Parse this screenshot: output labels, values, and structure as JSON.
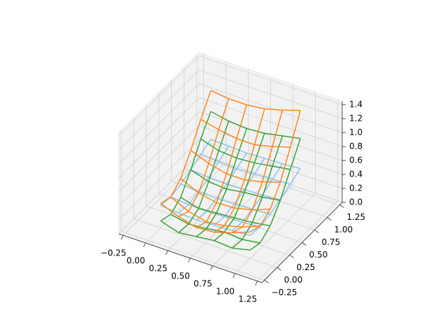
{
  "chart_data": {
    "type": "wireframe3d",
    "x": [
      0,
      0.2,
      0.4,
      0.6,
      0.8,
      1.0
    ],
    "y": [
      0,
      0.2,
      0.4,
      0.6,
      0.8,
      1.0
    ],
    "xlim": [
      -0.3,
      1.3
    ],
    "ylim": [
      -0.3,
      1.3
    ],
    "zlim": [
      0,
      1.45
    ],
    "xticks": [
      {
        "value": -0.25,
        "label": "−0.25"
      },
      {
        "value": 0,
        "label": "0.00"
      },
      0.25,
      {
        "value": 0.5,
        "label": "0.50"
      },
      0.75,
      {
        "value": 1.0,
        "label": "1.00"
      },
      1.25
    ],
    "yticks": [
      {
        "value": -0.25,
        "label": "−0.25"
      },
      {
        "value": 0,
        "label": "0.00"
      },
      0.25,
      {
        "value": 0.5,
        "label": "0.50"
      },
      0.75,
      {
        "value": 1.0,
        "label": "1.00"
      },
      1.25
    ],
    "zticks": [
      {
        "value": 0,
        "label": "0.0"
      },
      0.2,
      0.4,
      0.6,
      0.8,
      {
        "value": 1.0,
        "label": "1.0"
      },
      1.2,
      1.4
    ],
    "grid": true,
    "series": [
      {
        "color": "#8fc1e8",
        "z": [
          [
            0.32,
            0.3,
            0.34,
            0.4,
            0.48,
            0.55
          ],
          [
            0.3,
            0.28,
            0.32,
            0.38,
            0.46,
            0.54
          ],
          [
            0.29,
            0.27,
            0.31,
            0.37,
            0.45,
            0.53
          ],
          [
            0.3,
            0.28,
            0.32,
            0.38,
            0.46,
            0.54
          ],
          [
            0.31,
            0.29,
            0.33,
            0.39,
            0.47,
            0.55
          ],
          [
            0.33,
            0.31,
            0.35,
            0.41,
            0.49,
            0.57
          ]
        ]
      },
      {
        "color": "#2ca02c",
        "z": [
          [
            0.1,
            0.05,
            0.15,
            0.4,
            0.7,
            0.95
          ],
          [
            0.02,
            0.0,
            0.08,
            0.32,
            0.62,
            0.9
          ],
          [
            0.05,
            0.02,
            0.1,
            0.3,
            0.6,
            0.88
          ],
          [
            0.08,
            0.06,
            0.12,
            0.34,
            0.62,
            0.9
          ],
          [
            0.06,
            0.04,
            0.14,
            0.36,
            0.66,
            0.95
          ],
          [
            0.12,
            0.08,
            0.18,
            0.4,
            0.7,
            1.0
          ]
        ]
      },
      {
        "color": "#ff7f0e",
        "z": [
          [
            0.35,
            0.3,
            0.42,
            0.68,
            0.98,
            1.25
          ],
          [
            0.25,
            0.18,
            0.3,
            0.58,
            0.92,
            1.22
          ],
          [
            0.18,
            0.12,
            0.25,
            0.52,
            0.88,
            1.22
          ],
          [
            0.2,
            0.15,
            0.26,
            0.52,
            0.88,
            1.25
          ],
          [
            0.28,
            0.22,
            0.32,
            0.58,
            0.94,
            1.32
          ],
          [
            0.38,
            0.32,
            0.42,
            0.66,
            1.02,
            1.4
          ]
        ]
      }
    ]
  }
}
